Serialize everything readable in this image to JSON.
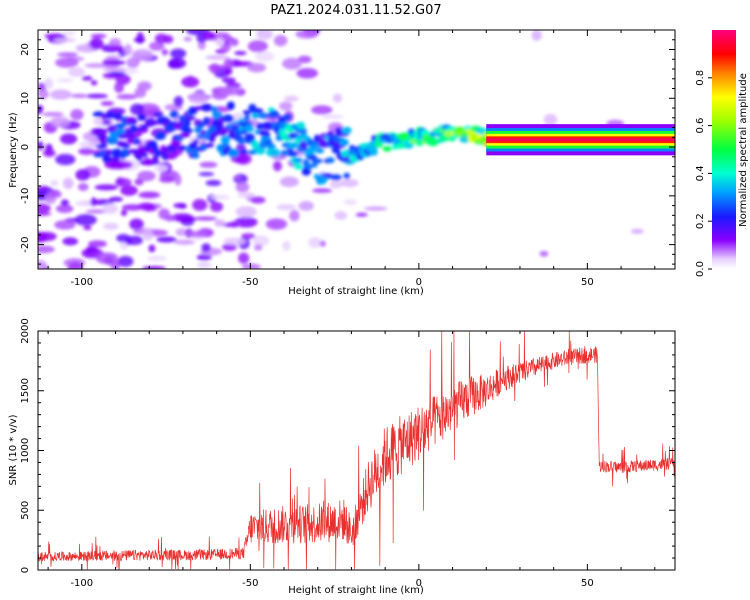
{
  "figure": {
    "title": "PAZ1.2024.031.11.52.G07"
  },
  "chart_data": [
    {
      "type": "heatmap",
      "xlabel": "Height of straight line (km)",
      "ylabel": "Frequency (Hz)",
      "xlim": [
        -113,
        76
      ],
      "ylim": [
        -25,
        24
      ],
      "x_ticks": [
        -100,
        -50,
        0,
        50
      ],
      "y_ticks": [
        -20,
        -10,
        0,
        10,
        20
      ],
      "x_tick_labels": [
        "-100",
        "-50",
        "0",
        "50"
      ],
      "y_tick_labels": [
        "-20",
        "-10",
        "0",
        "10",
        "20"
      ],
      "colormap": "rainbow (white-purple-blue-cyan-green-yellow-red-magenta)",
      "colorbar": {
        "label": "Normalized spectral amplitude",
        "range": [
          0,
          1
        ],
        "ticks": [
          0.0,
          0.2,
          0.4,
          0.6,
          0.8
        ],
        "tick_labels": [
          "0.0",
          "0.2",
          "0.4",
          "0.6",
          "0.8"
        ]
      },
      "ridge": {
        "description_points_x": [
          -100,
          -90,
          -80,
          -50,
          -40,
          -30,
          -20,
          -10,
          0,
          10,
          20,
          30,
          40,
          50,
          60,
          70,
          76
        ],
        "frequency_y": [
          2,
          2,
          2,
          4,
          2,
          -2,
          -1,
          1,
          2,
          3,
          2,
          1.5,
          1.5,
          1.5,
          1.5,
          1.5,
          1.5
        ],
        "peak_amplitude": [
          0.15,
          0.3,
          0.2,
          0.35,
          0.4,
          0.3,
          0.35,
          0.45,
          0.55,
          0.6,
          0.75,
          0.95,
          0.95,
          0.95,
          0.95,
          0.95,
          0.95
        ]
      },
      "grid": false
    },
    {
      "type": "line",
      "xlabel": "Height of straight line (km)",
      "ylabel": "SNR (10 * v/v)",
      "xlim": [
        -113,
        76
      ],
      "ylim": [
        0,
        2000
      ],
      "x_ticks": [
        -100,
        -50,
        0,
        50
      ],
      "y_ticks": [
        0,
        500,
        1000,
        1500,
        2000
      ],
      "x_tick_labels": [
        "-100",
        "-50",
        "0",
        "50"
      ],
      "y_tick_labels": [
        "0",
        "500",
        "1000",
        "1500",
        "2000"
      ],
      "color": "#e8302e",
      "grid": false,
      "series_envelope": {
        "x": [
          -113,
          -100,
          -90,
          -80,
          -70,
          -60,
          -52,
          -50,
          -40,
          -30,
          -22,
          -20,
          -15,
          -10,
          -5,
          0,
          5,
          10,
          15,
          20,
          25,
          30,
          35,
          40,
          45,
          50,
          53,
          53.5,
          60,
          65,
          70,
          76
        ],
        "y": [
          110,
          115,
          120,
          125,
          125,
          130,
          140,
          350,
          380,
          390,
          420,
          300,
          700,
          950,
          1050,
          1150,
          1250,
          1350,
          1450,
          1500,
          1600,
          1650,
          1700,
          1750,
          1780,
          1800,
          1800,
          870,
          860,
          870,
          880,
          890
        ],
        "noise": [
          40,
          40,
          45,
          45,
          45,
          45,
          50,
          140,
          160,
          170,
          180,
          140,
          220,
          260,
          250,
          240,
          220,
          200,
          180,
          140,
          110,
          90,
          80,
          70,
          70,
          70,
          70,
          50,
          50,
          50,
          50,
          50
        ]
      }
    }
  ]
}
